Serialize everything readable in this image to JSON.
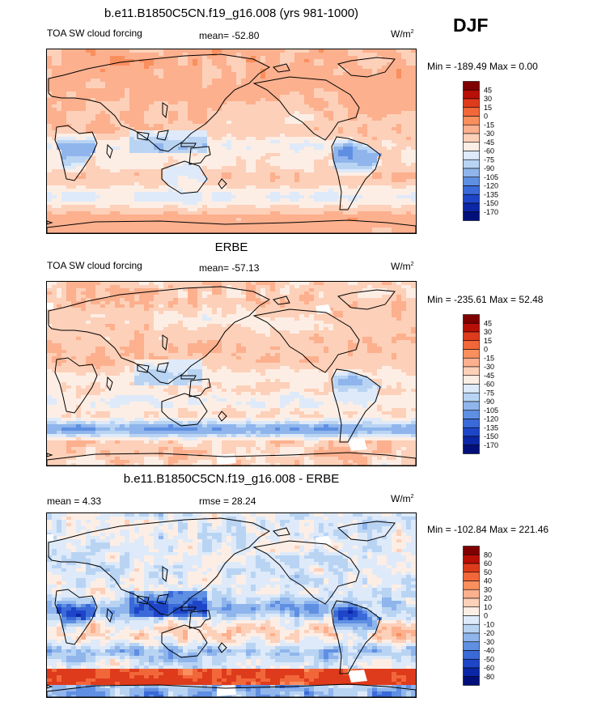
{
  "season": "DJF",
  "units_base": "W/m",
  "units_exp": "2",
  "palettes": {
    "forcing": [
      "#fffbe6",
      "#7f0000",
      "#b80f06",
      "#de3b1c",
      "#f2673a",
      "#fa8f5e",
      "#fcb08e",
      "#fdd0b9",
      "#fdeee5",
      "#deeaf9",
      "#b9d4f3",
      "#8fb5ec",
      "#5f8fe2",
      "#3a6ad8",
      "#1e45c7",
      "#0b26a6",
      "#020f7a"
    ],
    "diff": [
      "#7f0000",
      "#b80f06",
      "#de3b1c",
      "#f2673a",
      "#fa8f5e",
      "#fcb08e",
      "#fdd0b9",
      "#fdeee5",
      "#deeaf9",
      "#b9d4f3",
      "#8fb5ec",
      "#5f8fe2",
      "#3a6ad8",
      "#1e45c7",
      "#0b26a6",
      "#020f7a"
    ]
  },
  "chart_data": [
    {
      "type": "heatmap",
      "title": "b.e11.B1850C5CN.f19_g16.008 (yrs 981-1000)",
      "variable": "TOA SW cloud forcing",
      "stat_text": "mean= -52.80",
      "mean": -52.8,
      "minmax_text": "Min = -189.49 Max =   0.00",
      "min": -189.49,
      "max": 0.0,
      "colorbar_levels": [
        "45",
        "30",
        "15",
        "0",
        "-15",
        "-30",
        "-45",
        "-60",
        "-75",
        "-90",
        "-105",
        "-120",
        "-135",
        "-150",
        "-170"
      ],
      "field": "model"
    },
    {
      "type": "heatmap",
      "title": "ERBE",
      "variable": "TOA SW cloud forcing",
      "stat_text": "mean= -57.13",
      "mean": -57.13,
      "minmax_text": "Min = -235.61 Max =  52.48",
      "min": -235.61,
      "max": 52.48,
      "colorbar_levels": [
        "45",
        "30",
        "15",
        "0",
        "-15",
        "-30",
        "-45",
        "-60",
        "-75",
        "-90",
        "-105",
        "-120",
        "-135",
        "-150",
        "-170"
      ],
      "field": "obs"
    },
    {
      "type": "heatmap",
      "title": "b.e11.B1850C5CN.f19_g16.008 - ERBE",
      "variable": "mean =   4.33",
      "stat_text": "rmse =  28.24",
      "mean": 4.33,
      "rmse": 28.24,
      "minmax_text": "Min = -102.84 Max = 221.46",
      "min": -102.84,
      "max": 221.46,
      "colorbar_levels": [
        "80",
        "60",
        "50",
        "40",
        "30",
        "20",
        "10",
        "0",
        "-10",
        "-20",
        "-30",
        "-40",
        "-50",
        "-60",
        "-80"
      ],
      "field": "diff"
    }
  ]
}
